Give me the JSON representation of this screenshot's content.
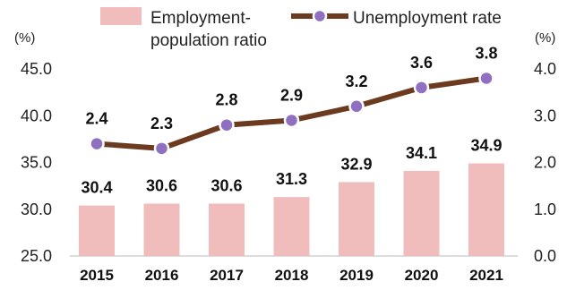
{
  "chart_data": {
    "type": "bar",
    "categories": [
      "2015",
      "2016",
      "2017",
      "2018",
      "2019",
      "2020",
      "2021"
    ],
    "series": [
      {
        "name": "Employment-population ratio",
        "name_lines": [
          "Employment-",
          "population ratio"
        ],
        "type": "bar",
        "axis": "left",
        "values": [
          30.4,
          30.6,
          30.6,
          31.3,
          32.9,
          34.1,
          34.9
        ],
        "labels": [
          "30.4",
          "30.6",
          "30.6",
          "31.3",
          "32.9",
          "34.1",
          "34.9"
        ],
        "color": "#f0bcbc"
      },
      {
        "name": "Unemployment rate",
        "type": "line",
        "axis": "right",
        "values": [
          2.4,
          2.3,
          2.8,
          2.9,
          3.2,
          3.6,
          3.8
        ],
        "labels": [
          "2.4",
          "2.3",
          "2.8",
          "2.9",
          "3.2",
          "3.6",
          "3.8"
        ],
        "color": "#6b3a1f",
        "marker_color": "#8f6fc0"
      }
    ],
    "left_axis": {
      "unit": "(%)",
      "ylim": [
        25.0,
        45.0
      ],
      "ticks": [
        "25.0",
        "30.0",
        "35.0",
        "40.0",
        "45.0"
      ]
    },
    "right_axis": {
      "unit": "(%)",
      "ylim": [
        0.0,
        4.0
      ],
      "ticks": [
        "0.0",
        "1.0",
        "2.0",
        "3.0",
        "4.0"
      ]
    },
    "grid": false,
    "legend_position": "top"
  }
}
